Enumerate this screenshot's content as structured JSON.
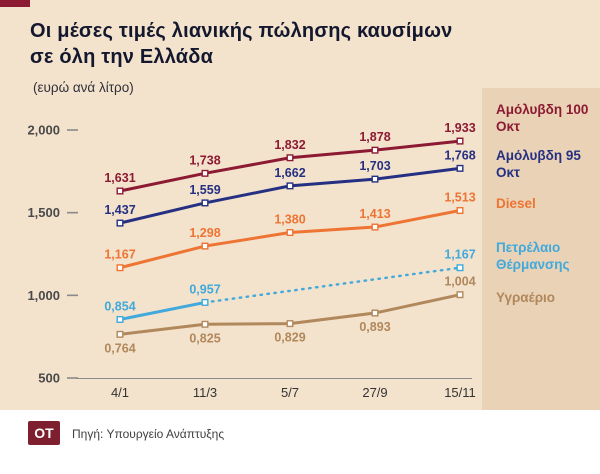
{
  "header": {
    "title_line1": "Οι μέσες τιμές λιανικής πώλησης καυσίμων",
    "title_line2": "σε όλη την Ελλάδα",
    "subtitle": "(ευρώ ανά λίτρο)"
  },
  "footer": {
    "logo": "OT",
    "source": "Πηγή: Υπουργείο Ανάπτυξης"
  },
  "colors": {
    "background": "#f3e2cc",
    "legend_panel": "#e9d2b5",
    "accent": "#8c1a33",
    "title": "#14182e",
    "axis_text": "#4a4a4a",
    "category_text": "#333333",
    "axis_line": "#8a8a8a",
    "footer_bg": "#ffffff",
    "footer_text": "#3f3f3f"
  },
  "chart_data": {
    "type": "line",
    "title": "Οι μέσες τιμές λιανικής πώλησης καυσίμων σε όλη την Ελλάδα",
    "subtitle": "(ευρώ ανά λίτρο)",
    "ylabel": "ευρώ ανά λίτρο",
    "xlabel": "",
    "grid": false,
    "legend_position": "right",
    "categories": [
      "4/1",
      "11/3",
      "5/7",
      "27/9",
      "15/11"
    ],
    "ylim": [
      500,
      2100
    ],
    "yticks": [
      {
        "value": 500,
        "label": "500"
      },
      {
        "value": 1000,
        "label": "1,000"
      },
      {
        "value": 1500,
        "label": "1,500"
      },
      {
        "value": 2000,
        "label": "2,000"
      }
    ],
    "series": [
      {
        "name": "Αμόλυβδη 100 Οκτ",
        "color": "#8c1a33",
        "style": "solid",
        "values": [
          1631,
          1738,
          1832,
          1878,
          1933
        ],
        "labels": [
          "1,631",
          "1,738",
          "1,832",
          "1,878",
          "1,933"
        ],
        "label_pos": [
          "above",
          "above",
          "above",
          "above",
          "above"
        ]
      },
      {
        "name": "Αμόλυβδη 95 Οκτ",
        "color": "#253082",
        "style": "solid",
        "values": [
          1437,
          1559,
          1662,
          1703,
          1768
        ],
        "labels": [
          "1,437",
          "1,559",
          "1,662",
          "1,703",
          "1,768"
        ],
        "label_pos": [
          "above",
          "above",
          "above",
          "above",
          "above"
        ]
      },
      {
        "name": "Diesel",
        "color": "#ee7434",
        "style": "solid",
        "values": [
          1167,
          1298,
          1380,
          1413,
          1513
        ],
        "labels": [
          "1,167",
          "1,298",
          "1,380",
          "1,413",
          "1,513"
        ],
        "label_pos": [
          "above",
          "above",
          "above",
          "above",
          "above"
        ]
      },
      {
        "name": "Πετρέλαιο Θέρμανσης",
        "color": "#41a9dc",
        "style": "solid_then_dotted",
        "dotted_from_index": 1,
        "values": [
          854,
          957,
          null,
          null,
          1167
        ],
        "labels": [
          "0,854",
          "0,957",
          null,
          null,
          "1,167"
        ],
        "label_pos": [
          "above",
          "above",
          null,
          null,
          "above"
        ]
      },
      {
        "name": "Υγραέριο",
        "color": "#b1885c",
        "style": "solid",
        "values": [
          764,
          825,
          829,
          893,
          1004
        ],
        "labels": [
          "0,764",
          "0,825",
          "0,829",
          "0,893",
          "1,004"
        ],
        "label_pos": [
          "below",
          "below",
          "below",
          "below",
          "above"
        ]
      }
    ]
  }
}
